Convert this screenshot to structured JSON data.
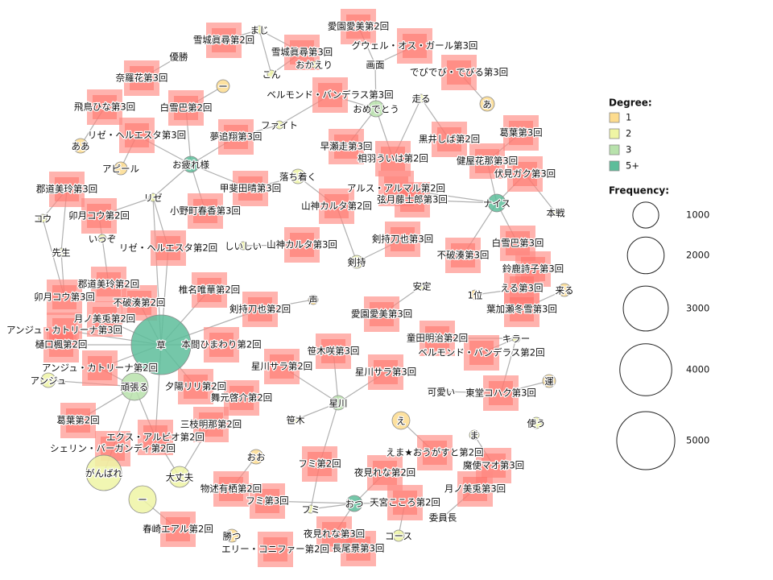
{
  "nodes": [
    {
      "label": "まじ"
    },
    {
      "label": "こん"
    },
    {
      "label": "優勝"
    },
    {
      "label": "ー"
    },
    {
      "label": "あ"
    },
    {
      "label": "画面"
    },
    {
      "label": "走る"
    },
    {
      "label": "おめでとう"
    },
    {
      "label": "ファイト"
    },
    {
      "label": "ああ"
    },
    {
      "label": "お疲れ様"
    },
    {
      "label": "アピール"
    },
    {
      "label": "落ち着く"
    },
    {
      "label": "リゼ"
    },
    {
      "label": "ナイス"
    },
    {
      "label": "本戦"
    },
    {
      "label": "コウ"
    },
    {
      "label": "いっぞ"
    },
    {
      "label": "しいしい"
    },
    {
      "label": "剣持"
    },
    {
      "label": "先生"
    },
    {
      "label": "安定"
    },
    {
      "label": "声"
    },
    {
      "label": "1位"
    },
    {
      "label": "来る"
    },
    {
      "label": "草"
    },
    {
      "label": "キラー"
    },
    {
      "label": "アンジュ"
    },
    {
      "label": "頑張る"
    },
    {
      "label": "運"
    },
    {
      "label": "可愛い"
    },
    {
      "label": "星川"
    },
    {
      "label": "笹木"
    },
    {
      "label": "え"
    },
    {
      "label": "使う"
    },
    {
      "label": "ま"
    },
    {
      "label": "おお"
    },
    {
      "label": "がんばれ"
    },
    {
      "label": "大丈夫"
    },
    {
      "label": "ー"
    },
    {
      "label": "フミ"
    },
    {
      "label": "おつ"
    },
    {
      "label": "勝つ"
    },
    {
      "label": "コース"
    },
    {
      "label": "委員長"
    },
    {
      "label": "おかえり"
    },
    {
      "label": "雪城眞尋第2回"
    },
    {
      "label": "愛園愛美第2回"
    },
    {
      "label": "雪城眞尋第3回"
    },
    {
      "label": "グウェル・オス・ガール第3回"
    },
    {
      "label": "奈羅花第3回"
    },
    {
      "label": "でびでび・でびる第3回"
    },
    {
      "label": "ベルモンド・バンデラス第3回"
    },
    {
      "label": "飛鳥ひな第3回"
    },
    {
      "label": "白雪巴第2回"
    },
    {
      "label": "夢追翔第3回"
    },
    {
      "label": "黒井しば第2回"
    },
    {
      "label": "葛葉第3回"
    },
    {
      "label": "早瀬走第3回"
    },
    {
      "label": "リゼ・ヘルエスタ第3回"
    },
    {
      "label": "相羽ういは第2回"
    },
    {
      "label": "健屋花那第3回"
    },
    {
      "label": "伏見ガク第3回"
    },
    {
      "label": "甲斐田晴第3回"
    },
    {
      "label": "アルス・アルマル第2回"
    },
    {
      "label": "郡道美玲第3回"
    },
    {
      "label": "山神カルタ第2回"
    },
    {
      "label": "弦月藤士郎第3回"
    },
    {
      "label": "小野町春香第3回"
    },
    {
      "label": "卯月コウ第2回"
    },
    {
      "label": "剣持刀也第3回"
    },
    {
      "label": "白雪巴第3回"
    },
    {
      "label": "リゼ・ヘルエスタ第2回"
    },
    {
      "label": "山神カルタ第3回"
    },
    {
      "label": "不破湊第3回"
    },
    {
      "label": "鈴鹿詩子第3回"
    },
    {
      "label": "郡道美玲第2回"
    },
    {
      "label": "椎名唯華第2回"
    },
    {
      "label": "える第3回"
    },
    {
      "label": "卯月コウ第3回"
    },
    {
      "label": "不破湊第2回"
    },
    {
      "label": "剣持刀也第2回"
    },
    {
      "label": "葉加瀬冬雪第3回"
    },
    {
      "label": "愛園愛美第3回"
    },
    {
      "label": "月ノ美兎第2回"
    },
    {
      "label": "アンジュ・カトリーナ第3回"
    },
    {
      "label": "本間ひまわり第2回"
    },
    {
      "label": "樋口楓第2回"
    },
    {
      "label": "童田明治第2回"
    },
    {
      "label": "笹木咲第3回"
    },
    {
      "label": "ベルモンド・バンデラス第2回"
    },
    {
      "label": "星川サラ第2回"
    },
    {
      "label": "アンジュ・カトリーナ第2回"
    },
    {
      "label": "星川サラ第3回"
    },
    {
      "label": "夕陽リリ第2回"
    },
    {
      "label": "東堂コハク第3回"
    },
    {
      "label": "舞元啓介第2回"
    },
    {
      "label": "葛葉第2回"
    },
    {
      "label": "三枝明那第2回"
    },
    {
      "label": "エクス・アルビオ第2回"
    },
    {
      "label": "えま★おうがすと第2回"
    },
    {
      "label": "シェリン・バーガンディ第2回"
    },
    {
      "label": "フミ第2回"
    },
    {
      "label": "魔使マオ第3回"
    },
    {
      "label": "夜見れな第2回"
    },
    {
      "label": "物述有栖第2回"
    },
    {
      "label": "月ノ美兎第3回"
    },
    {
      "label": "フミ第3回"
    },
    {
      "label": "天宮こころ第2回"
    },
    {
      "label": "春崎エアル第2回"
    },
    {
      "label": "夜見れな第3回"
    },
    {
      "label": "エリー・コニファー第2回"
    },
    {
      "label": "長尾景第3回"
    }
  ],
  "legend": {
    "degree": {
      "title": "Degree:",
      "items": [
        {
          "label": "1",
          "color": "#fddc8e"
        },
        {
          "label": "2",
          "color": "#eff5a4"
        },
        {
          "label": "3",
          "color": "#b8e2ac"
        },
        {
          "label": "5+",
          "color": "#5dbd9a"
        }
      ]
    },
    "frequency": {
      "title": "Frequency:",
      "items": [
        1000,
        2000,
        3000,
        4000,
        5000
      ]
    }
  }
}
